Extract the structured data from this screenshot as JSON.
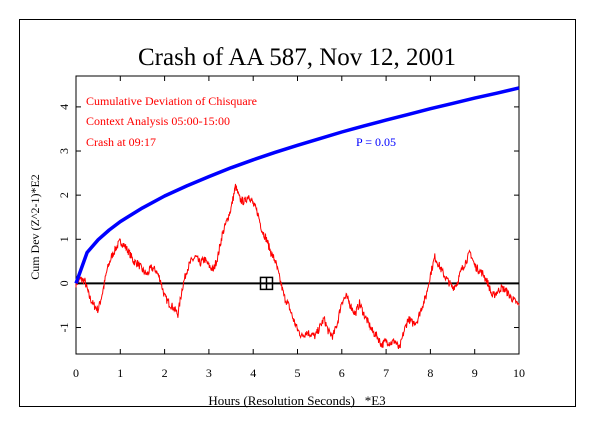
{
  "chart_data": {
    "type": "line",
    "title": "Crash of AA 587, Nov 12, 2001",
    "xlabel": "Hours (Resolution Seconds)   *E3",
    "ylabel": "Cum Dev (Z^2-1)*E2",
    "xlim": [
      0,
      10
    ],
    "ylim": [
      -1.6,
      4.7
    ],
    "x_ticks": [
      "0",
      "1",
      "2",
      "3",
      "4",
      "5",
      "6",
      "7",
      "8",
      "9",
      "10"
    ],
    "y_ticks": [
      "-1",
      "0",
      "1",
      "2",
      "3",
      "4"
    ],
    "grid": false,
    "annotations": [
      "Cumulative Deviation of Chisquare",
      "Context Analysis 05:00-15:00",
      "Crash at 09:17"
    ],
    "p_label": "P = 0.05",
    "event_marker": {
      "x": 4.3,
      "y": 0
    },
    "series": [
      {
        "color": "#ff0000",
        "x": [
          0,
          0.1,
          0.2,
          0.3,
          0.4,
          0.5,
          0.6,
          0.7,
          0.8,
          0.9,
          1.0,
          1.1,
          1.2,
          1.3,
          1.4,
          1.5,
          1.6,
          1.7,
          1.8,
          1.9,
          2.0,
          2.1,
          2.2,
          2.3,
          2.4,
          2.5,
          2.6,
          2.7,
          2.8,
          2.9,
          3.0,
          3.1,
          3.2,
          3.3,
          3.4,
          3.5,
          3.6,
          3.7,
          3.8,
          3.9,
          4.0,
          4.1,
          4.2,
          4.3,
          4.4,
          4.5,
          4.6,
          4.7,
          4.8,
          4.9,
          5.0,
          5.1,
          5.2,
          5.3,
          5.4,
          5.5,
          5.6,
          5.7,
          5.8,
          5.9,
          6.0,
          6.1,
          6.2,
          6.3,
          6.4,
          6.5,
          6.6,
          6.7,
          6.8,
          6.9,
          7.0,
          7.1,
          7.2,
          7.3,
          7.4,
          7.5,
          7.6,
          7.7,
          7.8,
          7.9,
          8.0,
          8.1,
          8.2,
          8.3,
          8.4,
          8.5,
          8.6,
          8.7,
          8.8,
          8.9,
          9.0,
          9.1,
          9.2,
          9.3,
          9.4,
          9.5,
          9.6,
          9.7,
          9.8,
          9.9,
          10.0
        ],
        "values": [
          0,
          0.1,
          0.05,
          -0.3,
          -0.5,
          -0.6,
          -0.2,
          0.3,
          0.6,
          0.8,
          0.95,
          0.85,
          0.7,
          0.5,
          0.45,
          0.3,
          0.2,
          0.35,
          0.3,
          0.1,
          -0.3,
          -0.45,
          -0.55,
          -0.7,
          -0.1,
          0.3,
          0.5,
          0.6,
          0.45,
          0.55,
          0.4,
          0.3,
          0.6,
          1.1,
          1.4,
          1.7,
          2.2,
          1.9,
          1.85,
          2.0,
          1.8,
          1.6,
          1.2,
          1.0,
          0.7,
          0.5,
          0.1,
          -0.3,
          -0.5,
          -0.8,
          -1.05,
          -1.2,
          -1.1,
          -1.15,
          -1.2,
          -1.0,
          -0.8,
          -1.1,
          -1.2,
          -0.9,
          -0.4,
          -0.3,
          -0.5,
          -0.7,
          -0.45,
          -0.7,
          -0.9,
          -1.1,
          -1.2,
          -1.4,
          -1.3,
          -1.35,
          -1.3,
          -1.5,
          -1.1,
          -0.8,
          -0.9,
          -0.85,
          -0.55,
          -0.3,
          0.2,
          0.6,
          0.4,
          0.2,
          0.05,
          -0.1,
          0.0,
          0.3,
          0.5,
          0.7,
          0.4,
          0.3,
          0.2,
          0.0,
          -0.3,
          -0.2,
          -0.1,
          -0.15,
          -0.3,
          -0.4,
          -0.5
        ]
      },
      {
        "color": "#0000ff",
        "x": [
          0,
          0.25,
          0.5,
          0.75,
          1,
          1.5,
          2,
          2.5,
          3,
          3.5,
          4,
          4.5,
          5,
          5.5,
          6,
          6.5,
          7,
          7.5,
          8,
          8.5,
          9,
          9.5,
          10
        ],
        "values": [
          0,
          0.7,
          0.99,
          1.21,
          1.4,
          1.71,
          1.98,
          2.21,
          2.42,
          2.62,
          2.8,
          2.97,
          3.13,
          3.28,
          3.43,
          3.57,
          3.7,
          3.83,
          3.96,
          4.08,
          4.2,
          4.31,
          4.43
        ]
      }
    ]
  }
}
